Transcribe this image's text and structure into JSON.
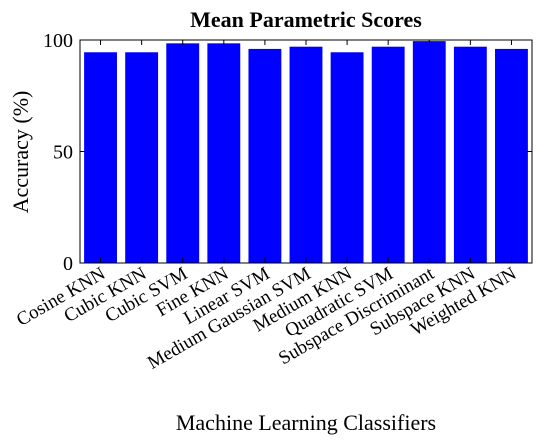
{
  "chart_data": {
    "type": "bar",
    "title": "Mean Parametric Scores",
    "xlabel": "Machine Learning Classifiers",
    "ylabel": "Accuracy (%)",
    "categories": [
      "Cosine KNN",
      "Cubic KNN",
      "Cubic SVM",
      "Fine KNN",
      "Linear SVM",
      "Medium Gaussian SVM",
      "Medium KNN",
      "Quadratic SVM",
      "Subspace Discriminant",
      "Subspace KNN",
      "Weighted KNN"
    ],
    "values": [
      94.5,
      94.5,
      98.5,
      98.5,
      96,
      97,
      94.5,
      97,
      99.5,
      97,
      96
    ],
    "ylim": [
      0,
      100
    ],
    "yticks": [
      0,
      50,
      100
    ],
    "bar_color": "#0000ff",
    "grid": false,
    "legend": false
  }
}
